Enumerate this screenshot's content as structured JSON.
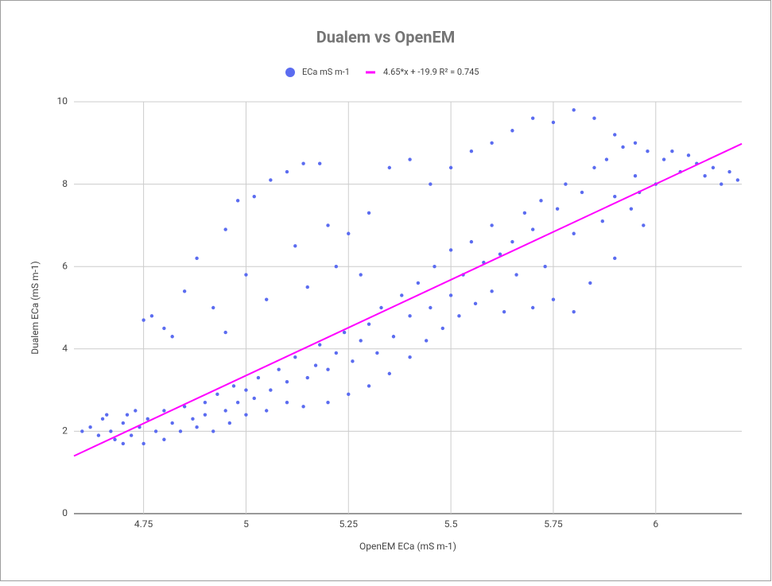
{
  "chart_data": {
    "type": "scatter",
    "title": "Dualem vs OpenEM",
    "x_label": "OpenEM ECa (mS m-1)",
    "y_label": "Dualem ECa (mS m-1)",
    "xlim": [
      4.58,
      6.21
    ],
    "ylim": [
      0,
      10
    ],
    "xticks": [
      4.75,
      5,
      5.25,
      5.5,
      5.75,
      6
    ],
    "yticks": [
      0,
      2,
      4,
      6,
      8,
      10
    ],
    "grid": true,
    "legend": "top",
    "series": [
      {
        "name": "ECa mS m-1",
        "color": "#5b6cf0",
        "mark": "point",
        "x": [
          4.6,
          4.62,
          4.64,
          4.65,
          4.67,
          4.68,
          4.7,
          4.71,
          4.72,
          4.74,
          4.75,
          4.76,
          4.78,
          4.8,
          4.8,
          4.82,
          4.84,
          4.85,
          4.87,
          4.88,
          4.9,
          4.9,
          4.92,
          4.93,
          4.95,
          4.96,
          4.97,
          4.98,
          5.0,
          5.0,
          5.02,
          5.03,
          5.05,
          5.06,
          5.08,
          5.1,
          5.1,
          5.12,
          5.14,
          5.15,
          5.17,
          5.18,
          5.2,
          5.2,
          5.22,
          5.24,
          5.25,
          5.26,
          5.28,
          5.3,
          5.3,
          5.32,
          5.33,
          5.35,
          5.36,
          5.38,
          5.4,
          5.4,
          5.42,
          5.44,
          5.45,
          5.46,
          5.48,
          5.5,
          5.5,
          5.52,
          5.53,
          5.55,
          5.56,
          5.58,
          5.6,
          5.6,
          5.62,
          5.63,
          5.65,
          5.66,
          5.68,
          5.7,
          5.7,
          5.72,
          5.73,
          5.75,
          5.76,
          5.78,
          5.8,
          5.8,
          5.82,
          5.84,
          5.85,
          5.87,
          5.88,
          5.9,
          5.9,
          5.92,
          5.94,
          5.95,
          5.96,
          5.97,
          5.98,
          6.0,
          6.02,
          6.04,
          6.06,
          6.08,
          6.1,
          6.12,
          6.14,
          6.16,
          6.18,
          6.2,
          4.75,
          4.77,
          4.8,
          4.82,
          4.85,
          4.88,
          4.92,
          4.95,
          4.98,
          5.02,
          5.06,
          5.1,
          5.14,
          5.18,
          5.05,
          5.12,
          5.2,
          5.25,
          5.3,
          5.35,
          5.4,
          5.45,
          5.5,
          5.55,
          5.6,
          5.65,
          5.7,
          5.75,
          5.8,
          5.85,
          5.9,
          5.95,
          5.15,
          5.22,
          5.28,
          4.95,
          5.0,
          4.66,
          4.7,
          4.73
        ],
        "values": [
          2.0,
          2.1,
          1.9,
          2.3,
          2.0,
          1.8,
          2.2,
          2.4,
          1.9,
          2.1,
          1.7,
          2.3,
          2.0,
          2.5,
          1.8,
          2.2,
          2.0,
          2.6,
          2.3,
          2.1,
          2.7,
          2.4,
          2.0,
          2.9,
          2.5,
          2.2,
          3.1,
          2.7,
          2.4,
          3.0,
          2.8,
          3.3,
          2.5,
          3.0,
          3.5,
          2.7,
          3.2,
          3.8,
          2.6,
          3.3,
          3.6,
          4.1,
          2.7,
          3.5,
          3.9,
          4.4,
          2.9,
          3.7,
          4.2,
          3.1,
          4.6,
          3.9,
          5.0,
          3.4,
          4.3,
          5.3,
          3.8,
          4.8,
          5.6,
          4.2,
          5.0,
          6.0,
          4.5,
          5.3,
          6.4,
          4.8,
          5.8,
          6.6,
          5.1,
          6.1,
          5.4,
          7.0,
          6.3,
          4.9,
          6.6,
          5.8,
          7.3,
          5.0,
          6.9,
          7.6,
          6.0,
          5.2,
          7.4,
          8.0,
          4.9,
          6.8,
          7.8,
          5.6,
          8.4,
          7.1,
          8.6,
          6.2,
          7.7,
          8.9,
          7.4,
          8.2,
          7.8,
          7.0,
          8.8,
          8.0,
          8.6,
          8.8,
          8.3,
          8.7,
          8.5,
          8.2,
          8.4,
          8.0,
          8.3,
          8.1,
          4.7,
          4.8,
          4.5,
          4.3,
          5.4,
          6.2,
          5.0,
          6.9,
          7.6,
          7.7,
          8.1,
          8.3,
          8.5,
          8.5,
          5.2,
          6.5,
          7.0,
          6.8,
          7.3,
          8.4,
          8.6,
          8.0,
          8.4,
          8.8,
          9.0,
          9.3,
          9.6,
          9.5,
          9.8,
          9.6,
          9.2,
          9.0,
          5.5,
          6.0,
          5.8,
          4.4,
          5.8,
          2.4,
          1.7,
          2.5
        ]
      },
      {
        "name": "4.65*x + -19.9 R² = 0.745",
        "color": "#ff00ff",
        "mark": "line",
        "x": [
          4.58,
          6.21
        ],
        "values": [
          1.4,
          8.98
        ]
      }
    ]
  }
}
